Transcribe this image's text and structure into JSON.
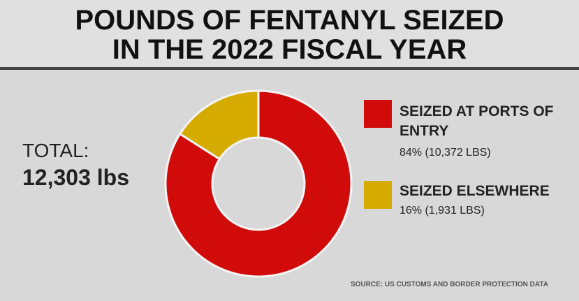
{
  "chart_data": {
    "type": "pie",
    "donut": true,
    "title": "POUNDS OF FENTANYL SEIZED IN THE 2022 FISCAL YEAR",
    "categories": [
      "SEIZED AT PORTS OF ENTRY",
      "SEIZED ELSEWHERE"
    ],
    "values": [
      84,
      16
    ],
    "value_labels": [
      "84% (10,372 LBS)",
      "16% (1,931 LBS)"
    ],
    "colors": [
      "#d10a0a",
      "#d6ab00"
    ],
    "annotations": [
      "TOTAL:",
      "12,303 lbs"
    ],
    "source": "SOURCE: US CUSTOMS AND BORDER PROTECTION DATA"
  }
}
